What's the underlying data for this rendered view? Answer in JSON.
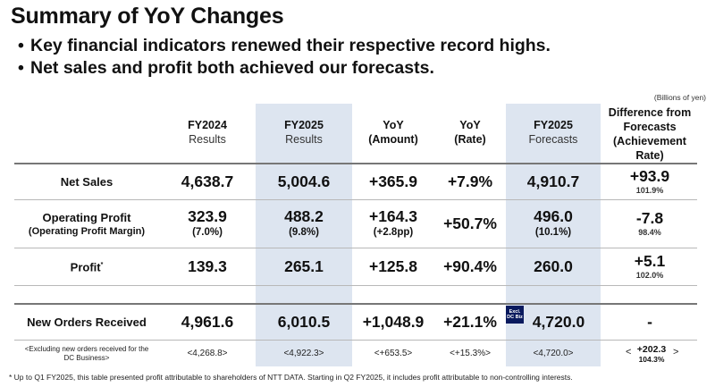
{
  "title": "Summary of YoY Changes",
  "bullets": [
    "Key financial indicators renewed their respective record highs.",
    "Net sales and profit both achieved our forecasts."
  ],
  "bullet_symbol": "•",
  "unit": "(Billions of yen)",
  "columns": [
    {
      "line1": "FY2024",
      "line2": "Results"
    },
    {
      "line1": "FY2025",
      "line2": "Results"
    },
    {
      "line1": "YoY",
      "line2": "(Amount)"
    },
    {
      "line1": "YoY",
      "line2": "(Rate)"
    },
    {
      "line1": "FY2025",
      "line2": "Forecasts"
    },
    {
      "line1": "Difference from",
      "line2": "Forecasts",
      "line3": "(Achievement",
      "line4": "Rate)"
    }
  ],
  "rows": {
    "net_sales": {
      "label": "Net Sales",
      "fy2024": "4,638.7",
      "fy2025": "5,004.6",
      "yoy_amount": "+365.9",
      "yoy_rate": "+7.9%",
      "forecast": "4,910.7",
      "diff": "+93.9",
      "achievement": "101.9%"
    },
    "operating_profit": {
      "label": "Operating Profit",
      "sublabel": "(Operating Profit Margin)",
      "fy2024": "323.9",
      "fy2024_sub": "(7.0%)",
      "fy2025": "488.2",
      "fy2025_sub": "(9.8%)",
      "yoy_amount": "+164.3",
      "yoy_amount_sub": "(+2.8pp)",
      "yoy_rate": "+50.7%",
      "forecast": "496.0",
      "forecast_sub": "(10.1%)",
      "diff": "-7.8",
      "achievement": "98.4%"
    },
    "profit": {
      "label": "Profit",
      "footnote_mark": "*",
      "fy2024": "139.3",
      "fy2025": "265.1",
      "yoy_amount": "+125.8",
      "yoy_rate": "+90.4%",
      "forecast": "260.0",
      "diff": "+5.1",
      "achievement": "102.0%"
    },
    "new_orders": {
      "label": "New Orders Received",
      "fy2024": "4,961.6",
      "fy2025": "6,010.5",
      "yoy_amount": "+1,048.9",
      "yoy_rate": "+21.1%",
      "forecast": "4,720.0",
      "badge_line1": "Excl.",
      "badge_line2": "DC Biz",
      "diff": "-"
    },
    "excluding": {
      "label_line1": "<Excluding new orders received for the",
      "label_line2": "DC Business>",
      "fy2024": "<4,268.8>",
      "fy2025": "<4,922.3>",
      "yoy_amount": "<+653.5>",
      "yoy_rate": "<+15.3%>",
      "forecast": "<4,720.0>",
      "angle_open": "<",
      "angle_close": ">",
      "diff": "+202.3",
      "achievement": "104.3%"
    }
  },
  "footnote": "* Up to Q1 FY2025, this table presented profit attributable to shareholders of NTT DATA. Starting in Q2 FY2025, it includes profit attributable to non-controlling interests."
}
